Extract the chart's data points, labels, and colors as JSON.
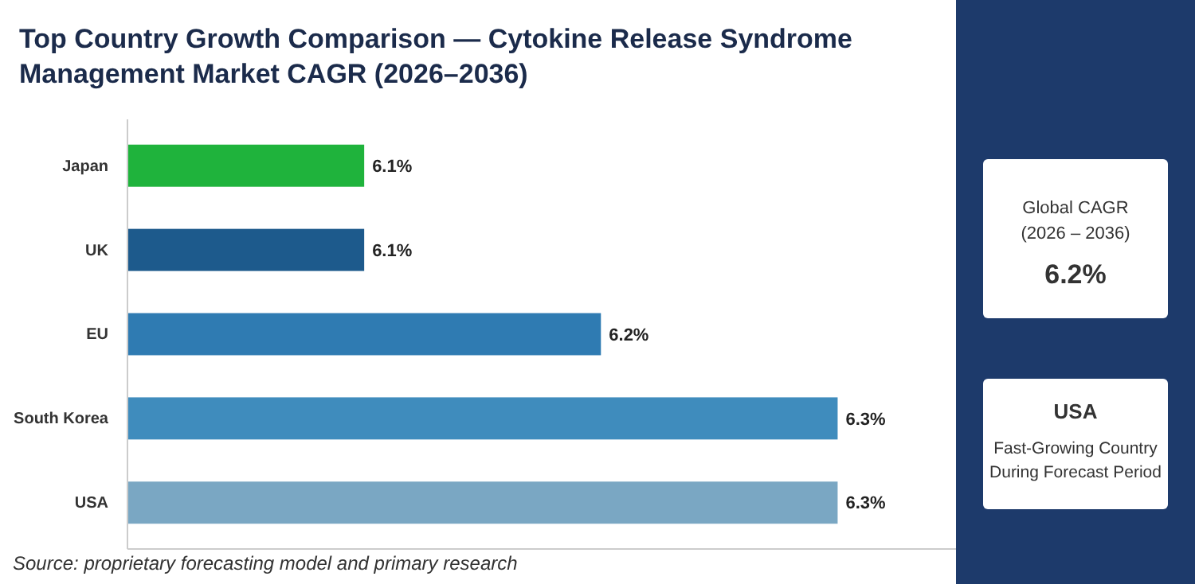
{
  "chart_data": {
    "type": "bar",
    "orientation": "horizontal",
    "title": "Top Country Growth Comparison — Cytokine Release Syndrome Management Market CAGR (2026–2036)",
    "categories": [
      "Japan",
      "UK",
      "EU",
      "South Korea",
      "USA"
    ],
    "values": [
      6.1,
      6.1,
      6.2,
      6.3,
      6.3
    ],
    "colors": [
      "#1fb33c",
      "#1d5a8c",
      "#2f7bb2",
      "#3f8cbd",
      "#7aa7c3"
    ],
    "xlim": [
      6.0,
      6.35
    ],
    "tick_labels": "y",
    "value_labels": [
      "6.1%",
      "6.1%",
      "6.2%",
      "6.3%",
      "6.3%"
    ],
    "annotations": [
      "Global CAGR",
      "(2026 – 2036)",
      "6.2%",
      "USA",
      "Fast-Growing Country During Forecast Period",
      "Source: proprietary forecasting model and primary research"
    ]
  }
}
